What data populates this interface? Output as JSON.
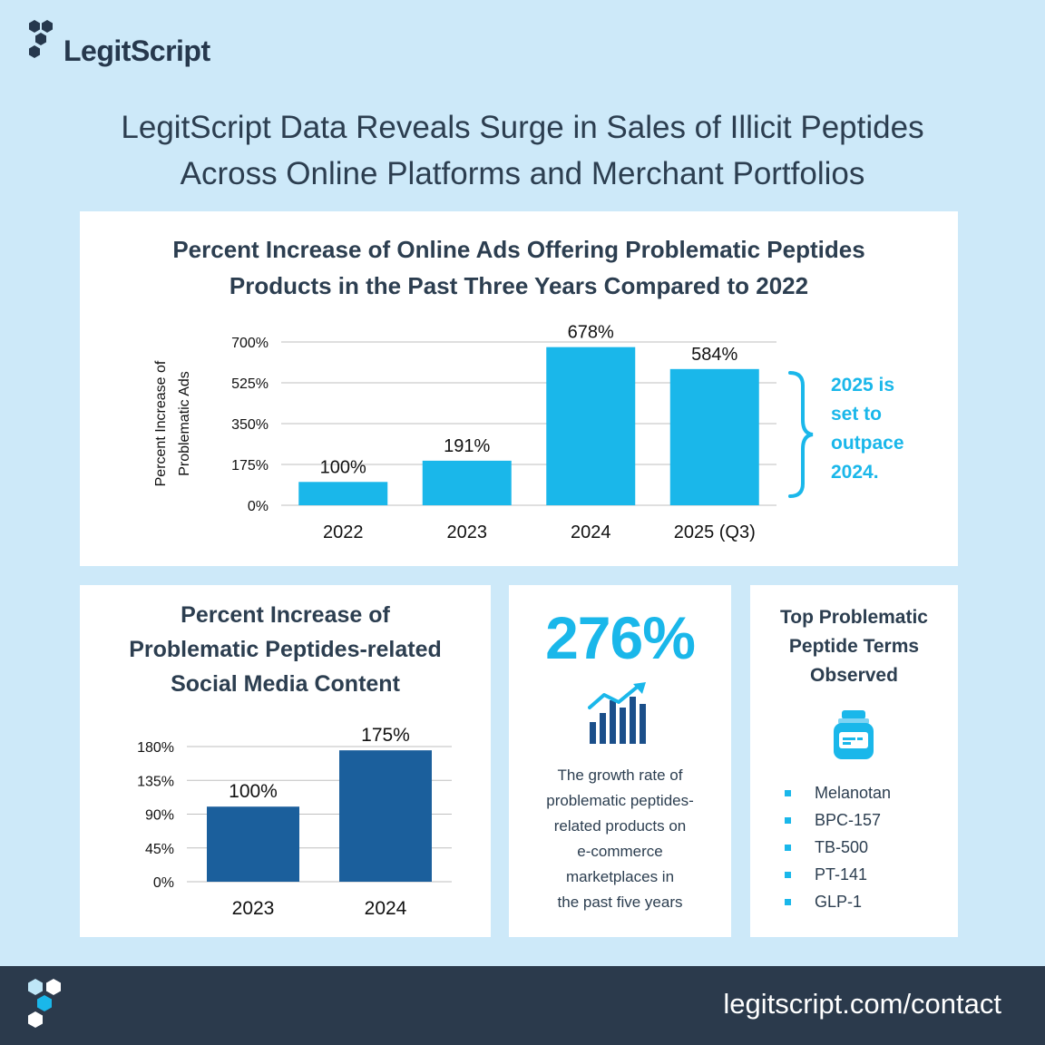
{
  "brand": {
    "name": "LegitScript",
    "footer_url": "legitscript.com/contact"
  },
  "headline": {
    "line1": "LegitScript Data Reveals Surge in Sales of Illicit Peptides",
    "line2": "Across Online Platforms and Merchant Portfolios"
  },
  "colors": {
    "bright_blue": "#1ab7ea",
    "dark_blue": "#1b5f9c",
    "navy": "#2b3a4c",
    "background": "#cde9f9"
  },
  "chart_data": [
    {
      "type": "bar",
      "title": "Percent Increase of Online Ads Offering Problematic Peptides Products in the Past Three Years Compared to 2022",
      "title_line1": "Percent Increase of Online Ads Offering Problematic Peptides",
      "title_line2": "Products in the Past Three Years Compared to 2022",
      "ylabel_line1": "Percent Increase of",
      "ylabel_line2": "Problematic Ads",
      "categories": [
        "2022",
        "2023",
        "2024",
        "2025 (Q3)"
      ],
      "values": [
        100,
        191,
        678,
        584
      ],
      "value_labels": [
        "100%",
        "191%",
        "678%",
        "584%"
      ],
      "ylim": [
        0,
        700
      ],
      "yticks": [
        0,
        175,
        350,
        525,
        700
      ],
      "ytick_labels": [
        "0%",
        "175%",
        "350%",
        "525%",
        "700%"
      ],
      "grid": true,
      "annotation": [
        "2025 is",
        "set to",
        "outpace",
        "2024."
      ]
    },
    {
      "type": "bar",
      "title": "Percent Increase of Problematic Peptides-related Social Media Content",
      "title_line1": "Percent Increase of",
      "title_line2": "Problematic Peptides-related",
      "title_line3": "Social Media Content",
      "categories": [
        "2023",
        "2024"
      ],
      "values": [
        100,
        175
      ],
      "value_labels": [
        "100%",
        "175%"
      ],
      "ylim": [
        0,
        180
      ],
      "yticks": [
        0,
        45,
        90,
        135,
        180
      ],
      "ytick_labels": [
        "0%",
        "45%",
        "90%",
        "135%",
        "180%"
      ],
      "grid": true
    }
  ],
  "stat": {
    "value": "276%",
    "icon": "bar-chart-growth-icon",
    "desc": [
      "The growth rate of",
      "problematic peptides-",
      "related products on",
      "e-commerce",
      "marketplaces in",
      "the past five years"
    ]
  },
  "terms": {
    "title": [
      "Top Problematic",
      "Peptide Terms",
      "Observed"
    ],
    "icon": "medicine-vial-icon",
    "items": [
      "Melanotan",
      "BPC-157",
      "TB-500",
      "PT-141",
      "GLP-1"
    ]
  }
}
